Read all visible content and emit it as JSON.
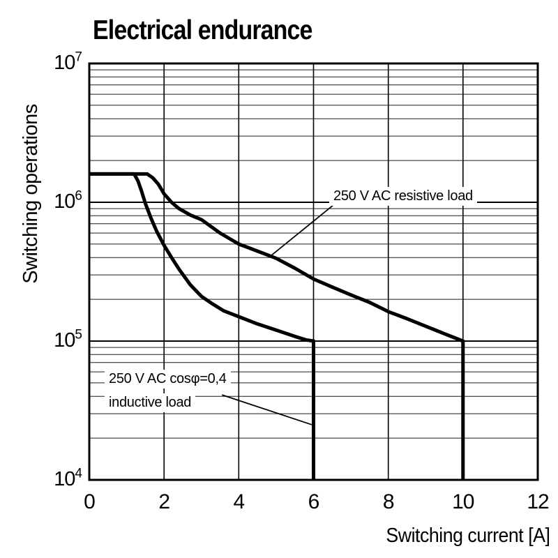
{
  "colors": {
    "background": "#ffffff",
    "ink": "#000000",
    "grid_minor": "#1c1c1c",
    "grid_major": "#000000",
    "curve": "#000000"
  },
  "chart_data": {
    "type": "line",
    "title": "Electrical endurance",
    "xlabel": "Switching current [A]",
    "ylabel": "Switching operations",
    "legend_position": "annotations-inside-plot",
    "grid": "on",
    "x_axis": {
      "scale": "linear",
      "min": 0,
      "max": 12,
      "ticks": [
        0,
        2,
        4,
        6,
        8,
        10,
        12
      ],
      "gridline_step": 2
    },
    "y_axis": {
      "scale": "log",
      "min": 10000.0,
      "max": 10000000.0,
      "ticks": [
        {
          "mantissa": "10",
          "exp": "7",
          "label": "10⁷",
          "value": 10000000.0
        },
        {
          "mantissa": "10",
          "exp": "6",
          "label": "10⁶",
          "value": 1000000.0
        },
        {
          "mantissa": "10",
          "exp": "5",
          "label": "10⁵",
          "value": 100000.0
        },
        {
          "mantissa": "10",
          "exp": "4",
          "label": "10⁴",
          "value": 10000.0
        }
      ],
      "minor_gridlines": "2-9 each decade"
    },
    "series": [
      {
        "name": "250 V AC resistive load",
        "flat_level_operations": 1600000.0,
        "drop_at_current": 10,
        "points": [
          [
            0,
            1600000.0
          ],
          [
            1.55,
            1600000.0
          ],
          [
            1.7,
            1500000.0
          ],
          [
            1.85,
            1350000.0
          ],
          [
            2,
            1150000.0
          ],
          [
            2.2,
            1000000.0
          ],
          [
            2.4,
            900000.0
          ],
          [
            2.7,
            810000.0
          ],
          [
            3,
            750000.0
          ],
          [
            3.5,
            600000.0
          ],
          [
            4,
            500000.0
          ],
          [
            4.5,
            445000.0
          ],
          [
            5,
            395000.0
          ],
          [
            5.5,
            335000.0
          ],
          [
            6,
            280000.0
          ],
          [
            6.5,
            245000.0
          ],
          [
            7,
            215000.0
          ],
          [
            7.5,
            190000.0
          ],
          [
            8,
            163000.0
          ],
          [
            8.5,
            145000.0
          ],
          [
            9,
            128000.0
          ],
          [
            9.5,
            113000.0
          ],
          [
            10,
            100000.0
          ],
          [
            10,
            10000.0
          ]
        ]
      },
      {
        "name": "250 V AC cosφ=0,4 inductive load",
        "flat_level_operations": 1600000.0,
        "drop_at_current": 6,
        "points": [
          [
            0,
            1600000.0
          ],
          [
            1.2,
            1600000.0
          ],
          [
            1.3,
            1430000.0
          ],
          [
            1.4,
            1200000.0
          ],
          [
            1.5,
            980000.0
          ],
          [
            1.65,
            770000.0
          ],
          [
            1.8,
            620000.0
          ],
          [
            2,
            490000.0
          ],
          [
            2.2,
            400000.0
          ],
          [
            2.4,
            330000.0
          ],
          [
            2.7,
            255000.0
          ],
          [
            3,
            210000.0
          ],
          [
            3.3,
            185000.0
          ],
          [
            3.6,
            165000.0
          ],
          [
            4,
            150000.0
          ],
          [
            4.5,
            133000.0
          ],
          [
            5,
            120000.0
          ],
          [
            5.5,
            108000.0
          ],
          [
            5.8,
            102000.0
          ],
          [
            6,
            100000.0
          ],
          [
            6,
            10000.0
          ]
        ]
      }
    ],
    "annotations": [
      {
        "lines": [
          "250 V AC resistive load"
        ],
        "leader": [
          [
            6.52,
            950000.0
          ],
          [
            4.85,
            410000.0
          ]
        ]
      },
      {
        "lines": [
          "250 V AC cosφ=0,4",
          "inductive load"
        ],
        "leader": [
          [
            3.55,
            41000.0
          ],
          [
            5.95,
            25000.0
          ]
        ]
      }
    ]
  }
}
